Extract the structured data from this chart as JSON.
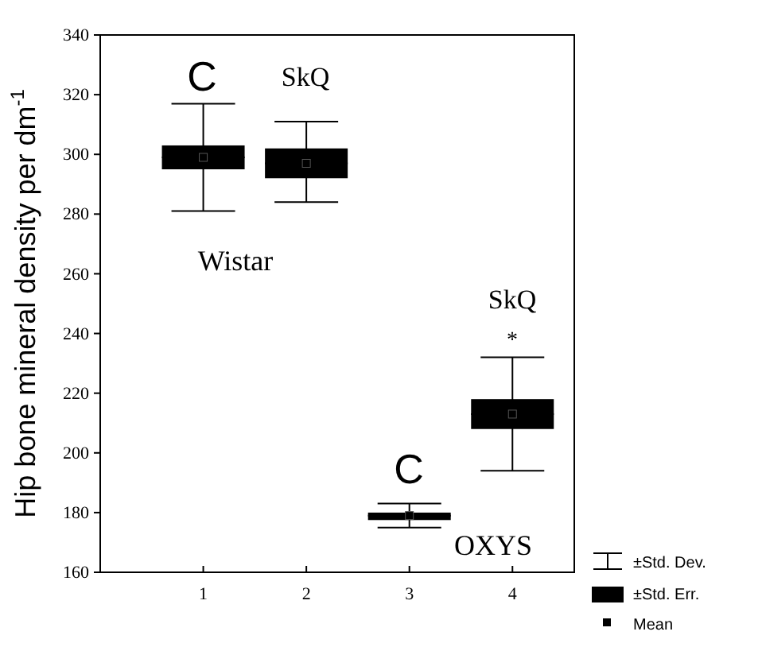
{
  "chart_data": {
    "type": "box",
    "ylabel": "Hip bone mineral density per dm$^{-1}$",
    "categories": [
      "1",
      "2",
      "3",
      "4"
    ],
    "boxes": [
      {
        "low": 281,
        "q1": 295,
        "median": 299,
        "mean": 299,
        "q3": 303,
        "high": 317
      },
      {
        "low": 284,
        "q1": 292,
        "median": 297,
        "mean": 297,
        "q3": 302,
        "high": 311
      },
      {
        "low": 175,
        "q1": 177.5,
        "median": 179,
        "mean": 179,
        "q3": 180,
        "high": 183
      },
      {
        "low": 194,
        "q1": 208,
        "median": 213,
        "mean": 213,
        "q3": 218,
        "high": 232
      }
    ],
    "color": "#000000",
    "ylim": [
      160,
      340
    ],
    "yticks": [
      160,
      180,
      200,
      220,
      240,
      260,
      280,
      300,
      320,
      340
    ],
    "grid": false,
    "annotations": [
      "C",
      "SkQ",
      "C",
      "SkQ",
      "*",
      "Wistar",
      "OXYS",
      "±Std. Dev.",
      "±Std. Err.",
      "Mean"
    ]
  }
}
